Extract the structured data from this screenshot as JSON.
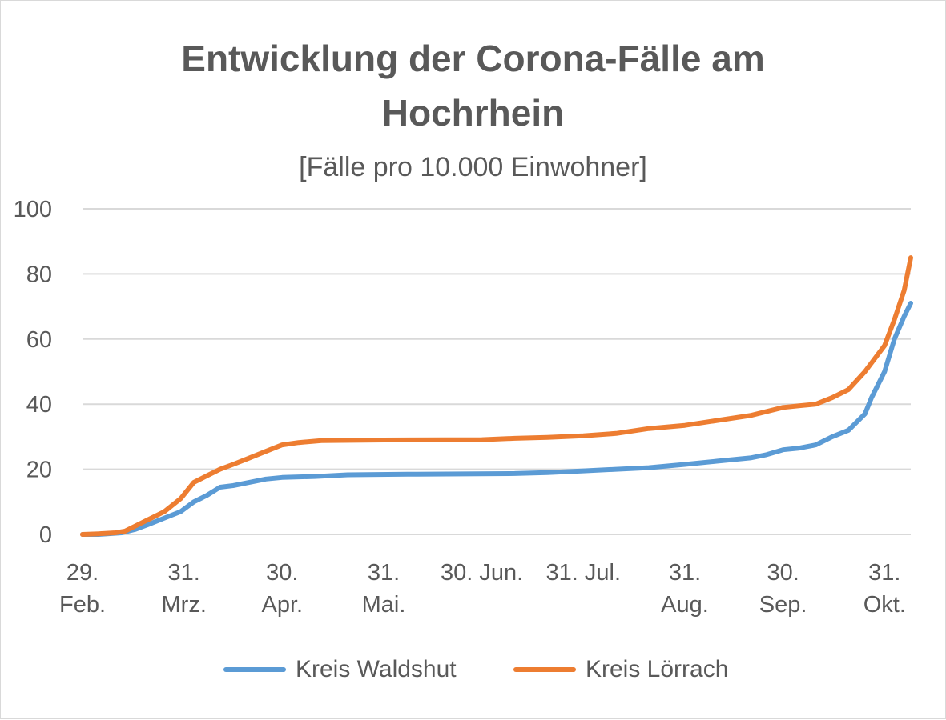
{
  "chart_data": {
    "type": "line",
    "title_lines": [
      "Entwicklung der Corona-Fälle am",
      "Hochrhein"
    ],
    "subtitle": "[Fälle pro 10.000  Einwohner]",
    "xlabel": "",
    "ylabel": "",
    "ylim": [
      0,
      100
    ],
    "yticks": [
      0,
      20,
      40,
      60,
      80,
      100
    ],
    "xlim": [
      "2020-02-29",
      "2020-11-08"
    ],
    "xticks": [
      {
        "date": "2020-02-29",
        "lines": [
          "29.",
          "Feb."
        ]
      },
      {
        "date": "2020-03-31",
        "lines": [
          "31.",
          "Mrz."
        ]
      },
      {
        "date": "2020-04-30",
        "lines": [
          "30.",
          "Apr."
        ]
      },
      {
        "date": "2020-05-31",
        "lines": [
          "31.",
          "Mai."
        ]
      },
      {
        "date": "2020-06-30",
        "lines": [
          "30. Jun."
        ]
      },
      {
        "date": "2020-07-31",
        "lines": [
          "31. Jul."
        ]
      },
      {
        "date": "2020-08-31",
        "lines": [
          "31.",
          "Aug."
        ]
      },
      {
        "date": "2020-09-30",
        "lines": [
          "30.",
          "Sep."
        ]
      },
      {
        "date": "2020-10-31",
        "lines": [
          "31.",
          "Okt."
        ]
      }
    ],
    "grid": true,
    "legend_position": "bottom",
    "series": [
      {
        "name": "Kreis Waldshut",
        "color": "#5b9bd5",
        "points": [
          [
            "2020-02-29",
            0
          ],
          [
            "2020-03-05",
            0
          ],
          [
            "2020-03-12",
            0.5
          ],
          [
            "2020-03-16",
            1.5
          ],
          [
            "2020-03-20",
            3
          ],
          [
            "2020-03-25",
            5
          ],
          [
            "2020-03-30",
            7
          ],
          [
            "2020-04-03",
            10
          ],
          [
            "2020-04-07",
            12
          ],
          [
            "2020-04-11",
            14.5
          ],
          [
            "2020-04-15",
            15
          ],
          [
            "2020-04-20",
            16
          ],
          [
            "2020-04-25",
            17
          ],
          [
            "2020-04-30",
            17.5
          ],
          [
            "2020-05-10",
            17.8
          ],
          [
            "2020-05-20",
            18.3
          ],
          [
            "2020-06-10",
            18.5
          ],
          [
            "2020-07-10",
            18.7
          ],
          [
            "2020-07-20",
            19.0
          ],
          [
            "2020-07-31",
            19.5
          ],
          [
            "2020-08-10",
            20
          ],
          [
            "2020-08-20",
            20.5
          ],
          [
            "2020-08-31",
            21.5
          ],
          [
            "2020-09-10",
            22.5
          ],
          [
            "2020-09-20",
            23.5
          ],
          [
            "2020-09-25",
            24.5
          ],
          [
            "2020-09-30",
            26
          ],
          [
            "2020-10-05",
            26.5
          ],
          [
            "2020-10-10",
            27.5
          ],
          [
            "2020-10-15",
            30
          ],
          [
            "2020-10-20",
            32
          ],
          [
            "2020-10-25",
            37
          ],
          [
            "2020-10-27",
            42
          ],
          [
            "2020-10-31",
            50
          ],
          [
            "2020-11-03",
            60
          ],
          [
            "2020-11-06",
            67
          ],
          [
            "2020-11-08",
            71
          ]
        ]
      },
      {
        "name": "Kreis Lörrach",
        "color": "#ed7d31",
        "points": [
          [
            "2020-02-29",
            0
          ],
          [
            "2020-03-05",
            0.2
          ],
          [
            "2020-03-10",
            0.5
          ],
          [
            "2020-03-13",
            1
          ],
          [
            "2020-03-16",
            2.5
          ],
          [
            "2020-03-20",
            4.5
          ],
          [
            "2020-03-25",
            7
          ],
          [
            "2020-03-30",
            11
          ],
          [
            "2020-04-03",
            16
          ],
          [
            "2020-04-07",
            18
          ],
          [
            "2020-04-11",
            20
          ],
          [
            "2020-04-15",
            21.5
          ],
          [
            "2020-04-20",
            23.5
          ],
          [
            "2020-04-25",
            25.5
          ],
          [
            "2020-04-30",
            27.5
          ],
          [
            "2020-05-05",
            28.2
          ],
          [
            "2020-05-12",
            28.8
          ],
          [
            "2020-05-31",
            29
          ],
          [
            "2020-06-30",
            29.1
          ],
          [
            "2020-07-10",
            29.5
          ],
          [
            "2020-07-20",
            29.8
          ],
          [
            "2020-07-31",
            30.3
          ],
          [
            "2020-08-10",
            31
          ],
          [
            "2020-08-20",
            32.5
          ],
          [
            "2020-08-31",
            33.5
          ],
          [
            "2020-09-10",
            35
          ],
          [
            "2020-09-20",
            36.5
          ],
          [
            "2020-09-30",
            39
          ],
          [
            "2020-10-05",
            39.5
          ],
          [
            "2020-10-10",
            40
          ],
          [
            "2020-10-15",
            42
          ],
          [
            "2020-10-20",
            44.5
          ],
          [
            "2020-10-25",
            50
          ],
          [
            "2020-10-31",
            58
          ],
          [
            "2020-11-03",
            66
          ],
          [
            "2020-11-06",
            75
          ],
          [
            "2020-11-08",
            85
          ]
        ]
      }
    ]
  }
}
